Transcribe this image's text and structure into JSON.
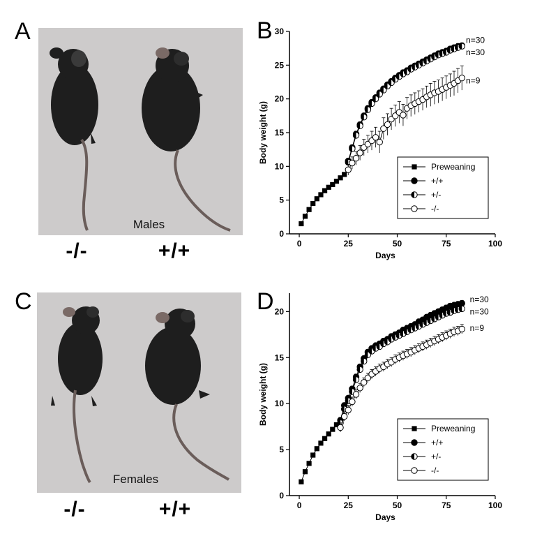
{
  "figure": {
    "panels": {
      "A": {
        "letter": "A",
        "photo_caption": "Males",
        "genotype_left": "-/-",
        "genotype_right": "+/+"
      },
      "B": {
        "letter": "B"
      },
      "C": {
        "letter": "C",
        "photo_caption": "Females",
        "genotype_left": "-/-",
        "genotype_right": "+/+"
      },
      "D": {
        "letter": "D"
      }
    }
  },
  "colors": {
    "photo_background": "#cdcbcb",
    "mouse_fur": "#1e1e1e",
    "axis": "#000000"
  },
  "chart_data": [
    {
      "panel": "B",
      "type": "line",
      "xlabel": "Days",
      "ylabel": "Body weight (g)",
      "xlim": [
        -5,
        100
      ],
      "ylim": [
        0,
        30
      ],
      "xticks": [
        0,
        25,
        50,
        75,
        100
      ],
      "yticks": [
        0,
        5,
        10,
        15,
        20,
        25,
        30
      ],
      "legend_position": "bottom-right",
      "series": [
        {
          "name": "Preweaning",
          "marker": "square-filled",
          "x": [
            1,
            3,
            5,
            7,
            9,
            11,
            13,
            15,
            17,
            19,
            21,
            23
          ],
          "y": [
            1.5,
            2.6,
            3.6,
            4.5,
            5.2,
            5.8,
            6.4,
            6.9,
            7.3,
            7.8,
            8.3,
            8.8
          ],
          "err": []
        },
        {
          "name": "+/+",
          "marker": "circle-filled",
          "x": [
            25,
            27,
            29,
            31,
            33,
            35,
            37,
            39,
            41,
            43,
            45,
            47,
            49,
            51,
            53,
            55,
            57,
            59,
            61,
            63,
            65,
            67,
            69,
            71,
            73,
            75,
            77,
            79,
            81,
            83
          ],
          "y": [
            10.8,
            12.8,
            14.8,
            16.2,
            17.5,
            18.6,
            19.5,
            20.2,
            20.9,
            21.5,
            22.1,
            22.6,
            23.1,
            23.5,
            23.9,
            24.2,
            24.6,
            24.9,
            25.2,
            25.5,
            25.8,
            26.1,
            26.4,
            26.7,
            26.9,
            27.1,
            27.4,
            27.6,
            27.8,
            27.9
          ],
          "err": [
            0.4,
            0.4,
            0.4,
            0.4,
            0.4,
            0.4,
            0.4,
            0.4,
            0.4,
            0.4,
            0.4,
            0.4,
            0.4,
            0.4,
            0.4,
            0.4,
            0.4,
            0.4,
            0.4,
            0.4,
            0.4,
            0.4,
            0.4,
            0.4,
            0.4,
            0.4,
            0.4,
            0.4,
            0.4,
            0.4
          ]
        },
        {
          "name": "+/-",
          "marker": "circle-half",
          "x": [
            25,
            27,
            29,
            31,
            33,
            35,
            37,
            39,
            41,
            43,
            45,
            47,
            49,
            51,
            53,
            55,
            57,
            59,
            61,
            63,
            65,
            67,
            69,
            71,
            73,
            75,
            77,
            79,
            81,
            83
          ],
          "y": [
            10.6,
            12.6,
            14.6,
            16.0,
            17.3,
            18.4,
            19.3,
            20.0,
            20.7,
            21.3,
            21.9,
            22.4,
            22.9,
            23.3,
            23.7,
            24.0,
            24.4,
            24.7,
            25.0,
            25.3,
            25.6,
            25.9,
            26.2,
            26.5,
            26.7,
            26.9,
            27.2,
            27.4,
            27.6,
            27.8
          ],
          "err": [
            0.4,
            0.4,
            0.4,
            0.4,
            0.4,
            0.4,
            0.4,
            0.4,
            0.4,
            0.4,
            0.4,
            0.4,
            0.4,
            0.4,
            0.4,
            0.4,
            0.4,
            0.4,
            0.4,
            0.4,
            0.4,
            0.4,
            0.4,
            0.4,
            0.4,
            0.4,
            0.4,
            0.4,
            0.4,
            0.4
          ]
        },
        {
          "name": "-/-",
          "marker": "circle-open",
          "x": [
            25,
            27,
            29,
            31,
            33,
            35,
            37,
            39,
            41,
            43,
            45,
            47,
            49,
            51,
            53,
            55,
            57,
            59,
            61,
            63,
            65,
            67,
            69,
            71,
            73,
            75,
            77,
            79,
            81,
            83
          ],
          "y": [
            9.5,
            10.5,
            11.2,
            12.0,
            12.8,
            13.3,
            13.8,
            14.3,
            13.6,
            15.6,
            16.2,
            17.0,
            17.5,
            18.0,
            17.6,
            18.6,
            19.0,
            19.3,
            19.6,
            19.9,
            20.3,
            20.6,
            20.9,
            21.1,
            21.4,
            21.7,
            22.0,
            22.3,
            22.7,
            23.1
          ],
          "err": [
            0.8,
            0.9,
            1.0,
            1.1,
            1.2,
            1.3,
            1.4,
            1.5,
            1.6,
            1.6,
            1.6,
            1.6,
            1.6,
            1.6,
            1.6,
            1.6,
            1.6,
            1.6,
            1.6,
            1.6,
            1.6,
            1.7,
            1.7,
            1.7,
            1.7,
            1.7,
            1.7,
            1.8,
            1.8,
            1.8
          ]
        }
      ],
      "annotations": [
        {
          "text": "n=30",
          "x": 84,
          "y": 28.7
        },
        {
          "text": "n=30",
          "x": 84,
          "y": 26.9
        },
        {
          "text": "n=9",
          "x": 84,
          "y": 22.7
        }
      ]
    },
    {
      "panel": "D",
      "type": "line",
      "xlabel": "Days",
      "ylabel": "Body weight (g)",
      "xlim": [
        -5,
        100
      ],
      "ylim": [
        0,
        22
      ],
      "xticks": [
        0,
        25,
        50,
        75,
        100
      ],
      "yticks": [
        0,
        5,
        10,
        15,
        20
      ],
      "legend_position": "bottom-right",
      "series": [
        {
          "name": "Preweaning",
          "marker": "square-filled",
          "x": [
            1,
            3,
            5,
            7,
            9,
            11,
            13,
            15,
            17,
            19,
            21
          ],
          "y": [
            1.5,
            2.6,
            3.5,
            4.4,
            5.1,
            5.7,
            6.2,
            6.7,
            7.2,
            7.7,
            8.1
          ],
          "err": []
        },
        {
          "name": "+/+",
          "marker": "circle-filled",
          "x": [
            21,
            23,
            25,
            27,
            29,
            31,
            33,
            35,
            37,
            39,
            41,
            43,
            45,
            47,
            49,
            51,
            53,
            55,
            57,
            59,
            61,
            63,
            65,
            67,
            69,
            71,
            73,
            75,
            77,
            79,
            81,
            83
          ],
          "y": [
            8.2,
            9.8,
            10.6,
            11.6,
            12.9,
            14.0,
            14.9,
            15.6,
            16.0,
            16.3,
            16.5,
            16.8,
            17.0,
            17.3,
            17.5,
            17.7,
            18.0,
            18.2,
            18.4,
            18.6,
            18.9,
            19.1,
            19.4,
            19.6,
            19.8,
            20.0,
            20.2,
            20.4,
            20.6,
            20.7,
            20.8,
            20.9
          ],
          "err": [
            0.3,
            0.3,
            0.3,
            0.3,
            0.3,
            0.3,
            0.3,
            0.3,
            0.3,
            0.3,
            0.3,
            0.3,
            0.3,
            0.3,
            0.3,
            0.3,
            0.3,
            0.3,
            0.3,
            0.3,
            0.3,
            0.3,
            0.3,
            0.3,
            0.3,
            0.3,
            0.3,
            0.3,
            0.3,
            0.3,
            0.3,
            0.3
          ]
        },
        {
          "name": "+/-",
          "marker": "circle-half",
          "x": [
            21,
            23,
            25,
            27,
            29,
            31,
            33,
            35,
            37,
            39,
            41,
            43,
            45,
            47,
            49,
            51,
            53,
            55,
            57,
            59,
            61,
            63,
            65,
            67,
            69,
            71,
            73,
            75,
            77,
            79,
            81,
            83
          ],
          "y": [
            7.9,
            9.4,
            10.3,
            11.3,
            12.6,
            13.7,
            14.6,
            15.3,
            15.7,
            16.0,
            16.2,
            16.5,
            16.7,
            17.0,
            17.2,
            17.4,
            17.6,
            17.8,
            18.0,
            18.2,
            18.4,
            18.6,
            18.8,
            19.0,
            19.2,
            19.4,
            19.6,
            19.8,
            19.9,
            20.1,
            20.2,
            20.3
          ],
          "err": [
            0.3,
            0.3,
            0.3,
            0.3,
            0.3,
            0.3,
            0.3,
            0.3,
            0.3,
            0.3,
            0.3,
            0.3,
            0.3,
            0.3,
            0.3,
            0.3,
            0.3,
            0.3,
            0.3,
            0.3,
            0.3,
            0.3,
            0.3,
            0.3,
            0.3,
            0.3,
            0.3,
            0.3,
            0.3,
            0.3,
            0.3,
            0.3
          ]
        },
        {
          "name": "-/-",
          "marker": "circle-open",
          "x": [
            21,
            23,
            25,
            27,
            29,
            31,
            33,
            35,
            37,
            39,
            41,
            43,
            45,
            47,
            49,
            51,
            53,
            55,
            57,
            59,
            61,
            63,
            65,
            67,
            69,
            71,
            73,
            75,
            77,
            79,
            81,
            83
          ],
          "y": [
            7.4,
            8.6,
            9.3,
            10.2,
            11.0,
            11.7,
            12.3,
            12.8,
            13.2,
            13.5,
            13.8,
            14.0,
            14.3,
            14.5,
            14.8,
            15.0,
            15.2,
            15.4,
            15.6,
            15.8,
            16.0,
            16.2,
            16.4,
            16.6,
            16.8,
            17.0,
            17.2,
            17.4,
            17.6,
            17.8,
            17.9,
            18.1
          ],
          "err": [
            0.5,
            0.5,
            0.5,
            0.5,
            0.5,
            0.5,
            0.5,
            0.5,
            0.5,
            0.5,
            0.5,
            0.5,
            0.5,
            0.5,
            0.5,
            0.5,
            0.5,
            0.5,
            0.5,
            0.5,
            0.5,
            0.5,
            0.5,
            0.5,
            0.5,
            0.5,
            0.5,
            0.5,
            0.5,
            0.5,
            0.5,
            0.5
          ]
        }
      ],
      "annotations": [
        {
          "text": "n=30",
          "x": 86,
          "y": 21.3
        },
        {
          "text": "n=30",
          "x": 86,
          "y": 20.0
        },
        {
          "text": "n=9",
          "x": 86,
          "y": 18.2
        }
      ]
    }
  ]
}
